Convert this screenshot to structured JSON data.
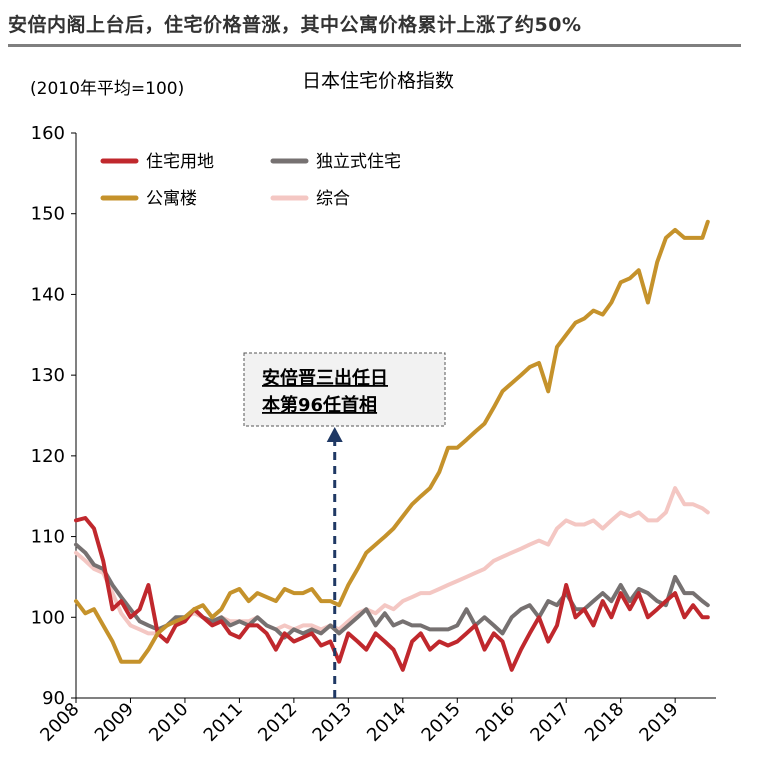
{
  "headline": "安倍内阁上台后，住宅价格普涨，其中公寓价格累计上涨了约50%",
  "chart_data": {
    "type": "line",
    "title": "日本住宅价格指数",
    "unit_label": "(2010年平均=100)",
    "xlabel": "",
    "ylabel": "",
    "ylim": [
      90,
      160
    ],
    "yticks": [
      90,
      100,
      110,
      120,
      130,
      140,
      150,
      160
    ],
    "xlim": [
      2008.0,
      2019.75
    ],
    "xticks": [
      "2008",
      "2009",
      "2010",
      "2011",
      "2012",
      "2013",
      "2014",
      "2015",
      "2016",
      "2017",
      "2018",
      "2019"
    ],
    "grid": false,
    "legend_position": "top-left",
    "annotation": {
      "lines": [
        "安倍晋三出任日",
        "本第96任首相"
      ],
      "x": 2012.75
    },
    "series": [
      {
        "name": "住宅用地",
        "color": "#c0282d",
        "x": [
          2008.0,
          2008.17,
          2008.33,
          2008.5,
          2008.67,
          2008.83,
          2009.0,
          2009.17,
          2009.33,
          2009.5,
          2009.67,
          2009.83,
          2010.0,
          2010.17,
          2010.33,
          2010.5,
          2010.67,
          2010.83,
          2011.0,
          2011.17,
          2011.33,
          2011.5,
          2011.67,
          2011.83,
          2012.0,
          2012.17,
          2012.33,
          2012.5,
          2012.67,
          2012.83,
          2013.0,
          2013.17,
          2013.33,
          2013.5,
          2013.67,
          2013.83,
          2014.0,
          2014.17,
          2014.33,
          2014.5,
          2014.67,
          2014.83,
          2015.0,
          2015.17,
          2015.33,
          2015.5,
          2015.67,
          2015.83,
          2016.0,
          2016.17,
          2016.33,
          2016.5,
          2016.67,
          2016.83,
          2017.0,
          2017.17,
          2017.33,
          2017.5,
          2017.67,
          2017.83,
          2018.0,
          2018.17,
          2018.33,
          2018.5,
          2018.67,
          2018.83,
          2019.0,
          2019.17,
          2019.33,
          2019.5,
          2019.6
        ],
        "values": [
          112.0,
          112.3,
          111.0,
          107.0,
          101.0,
          102.0,
          100.0,
          101.0,
          104.0,
          98.0,
          97.0,
          99.0,
          99.5,
          101.0,
          100.0,
          99.0,
          99.5,
          98.0,
          97.5,
          99.0,
          99.0,
          98.0,
          96.0,
          98.0,
          97.0,
          97.5,
          98.0,
          96.5,
          97.0,
          94.5,
          98.0,
          97.0,
          96.0,
          98.0,
          97.0,
          96.0,
          93.5,
          97.0,
          98.0,
          96.0,
          97.0,
          96.5,
          97.0,
          98.0,
          99.0,
          96.0,
          98.0,
          97.0,
          93.5,
          96.0,
          98.0,
          100.0,
          97.0,
          99.0,
          104.0,
          100.0,
          101.0,
          99.0,
          102.0,
          100.0,
          103.0,
          101.0,
          103.0,
          100.0,
          101.0,
          102.0,
          103.0,
          100.0,
          101.5,
          100.0,
          100.0
        ]
      },
      {
        "name": "独立式住宅",
        "color": "#767171",
        "x": [
          2008.0,
          2008.17,
          2008.33,
          2008.5,
          2008.67,
          2008.83,
          2009.0,
          2009.17,
          2009.33,
          2009.5,
          2009.67,
          2009.83,
          2010.0,
          2010.17,
          2010.33,
          2010.5,
          2010.67,
          2010.83,
          2011.0,
          2011.17,
          2011.33,
          2011.5,
          2011.67,
          2011.83,
          2012.0,
          2012.17,
          2012.33,
          2012.5,
          2012.67,
          2012.83,
          2013.0,
          2013.17,
          2013.33,
          2013.5,
          2013.67,
          2013.83,
          2014.0,
          2014.17,
          2014.33,
          2014.5,
          2014.67,
          2014.83,
          2015.0,
          2015.17,
          2015.33,
          2015.5,
          2015.67,
          2015.83,
          2016.0,
          2016.17,
          2016.33,
          2016.5,
          2016.67,
          2016.83,
          2017.0,
          2017.17,
          2017.33,
          2017.5,
          2017.67,
          2017.83,
          2018.0,
          2018.17,
          2018.33,
          2018.5,
          2018.67,
          2018.83,
          2019.0,
          2019.17,
          2019.33,
          2019.5,
          2019.6
        ],
        "values": [
          109.0,
          108.0,
          106.5,
          106.0,
          104.0,
          102.5,
          101.0,
          99.5,
          99.0,
          98.5,
          99.0,
          100.0,
          100.0,
          101.0,
          100.0,
          99.5,
          100.0,
          99.0,
          99.5,
          99.0,
          100.0,
          99.0,
          98.5,
          97.5,
          98.5,
          98.0,
          98.5,
          98.0,
          99.0,
          98.0,
          99.0,
          100.0,
          101.0,
          99.0,
          100.5,
          99.0,
          99.5,
          99.0,
          99.0,
          98.5,
          98.5,
          98.5,
          99.0,
          101.0,
          99.0,
          100.0,
          99.0,
          98.0,
          100.0,
          101.0,
          101.5,
          100.0,
          102.0,
          101.5,
          103.0,
          101.0,
          101.0,
          102.0,
          103.0,
          102.0,
          104.0,
          102.0,
          103.5,
          103.0,
          102.0,
          101.5,
          105.0,
          103.0,
          103.0,
          102.0,
          101.5
        ]
      },
      {
        "name": "公寓楼",
        "color": "#c5922b",
        "x": [
          2008.0,
          2008.17,
          2008.33,
          2008.5,
          2008.67,
          2008.83,
          2009.0,
          2009.17,
          2009.33,
          2009.5,
          2009.67,
          2009.83,
          2010.0,
          2010.17,
          2010.33,
          2010.5,
          2010.67,
          2010.83,
          2011.0,
          2011.17,
          2011.33,
          2011.5,
          2011.67,
          2011.83,
          2012.0,
          2012.17,
          2012.33,
          2012.5,
          2012.67,
          2012.83,
          2013.0,
          2013.17,
          2013.33,
          2013.5,
          2013.67,
          2013.83,
          2014.0,
          2014.17,
          2014.33,
          2014.5,
          2014.67,
          2014.83,
          2015.0,
          2015.17,
          2015.33,
          2015.5,
          2015.67,
          2015.83,
          2016.0,
          2016.17,
          2016.33,
          2016.5,
          2016.67,
          2016.83,
          2017.0,
          2017.17,
          2017.33,
          2017.5,
          2017.67,
          2017.83,
          2018.0,
          2018.17,
          2018.33,
          2018.5,
          2018.67,
          2018.83,
          2019.0,
          2019.17,
          2019.33,
          2019.5,
          2019.6
        ],
        "values": [
          102.0,
          100.5,
          101.0,
          99.0,
          97.0,
          94.5,
          94.5,
          94.5,
          96.0,
          98.0,
          99.0,
          99.5,
          100.0,
          101.0,
          101.5,
          100.0,
          101.0,
          103.0,
          103.5,
          102.0,
          103.0,
          102.5,
          102.0,
          103.5,
          103.0,
          103.0,
          103.5,
          102.0,
          102.0,
          101.5,
          104.0,
          106.0,
          108.0,
          109.0,
          110.0,
          111.0,
          112.5,
          114.0,
          115.0,
          116.0,
          118.0,
          121.0,
          121.0,
          122.0,
          123.0,
          124.0,
          126.0,
          128.0,
          129.0,
          130.0,
          131.0,
          131.5,
          128.0,
          133.5,
          135.0,
          136.5,
          137.0,
          138.0,
          137.5,
          139.0,
          141.5,
          142.0,
          143.0,
          139.0,
          144.0,
          147.0,
          148.0,
          147.0,
          147.0,
          147.0,
          149.0
        ]
      },
      {
        "name": "综合",
        "color": "#f4c7c3",
        "x": [
          2008.0,
          2008.17,
          2008.33,
          2008.5,
          2008.67,
          2008.83,
          2009.0,
          2009.17,
          2009.33,
          2009.5,
          2009.67,
          2009.83,
          2010.0,
          2010.17,
          2010.33,
          2010.5,
          2010.67,
          2010.83,
          2011.0,
          2011.17,
          2011.33,
          2011.5,
          2011.67,
          2011.83,
          2012.0,
          2012.17,
          2012.33,
          2012.5,
          2012.67,
          2012.83,
          2013.0,
          2013.17,
          2013.33,
          2013.5,
          2013.67,
          2013.83,
          2014.0,
          2014.17,
          2014.33,
          2014.5,
          2014.67,
          2014.83,
          2015.0,
          2015.17,
          2015.33,
          2015.5,
          2015.67,
          2015.83,
          2016.0,
          2016.17,
          2016.33,
          2016.5,
          2016.67,
          2016.83,
          2017.0,
          2017.17,
          2017.33,
          2017.5,
          2017.67,
          2017.83,
          2018.0,
          2018.17,
          2018.33,
          2018.5,
          2018.67,
          2018.83,
          2019.0,
          2019.17,
          2019.33,
          2019.5,
          2019.6
        ],
        "values": [
          108.0,
          107.0,
          106.0,
          105.5,
          103.0,
          100.5,
          99.0,
          98.5,
          98.0,
          98.0,
          99.0,
          99.5,
          100.0,
          100.5,
          100.0,
          99.5,
          100.0,
          99.5,
          99.5,
          99.5,
          100.0,
          99.0,
          98.5,
          99.0,
          98.5,
          99.0,
          99.0,
          98.5,
          99.0,
          98.5,
          99.5,
          100.5,
          101.0,
          100.5,
          101.5,
          101.0,
          102.0,
          102.5,
          103.0,
          103.0,
          103.5,
          104.0,
          104.5,
          105.0,
          105.5,
          106.0,
          107.0,
          107.5,
          108.0,
          108.5,
          109.0,
          109.5,
          109.0,
          111.0,
          112.0,
          111.5,
          111.5,
          112.0,
          111.0,
          112.0,
          113.0,
          112.5,
          113.0,
          112.0,
          112.0,
          113.0,
          116.0,
          114.0,
          114.0,
          113.5,
          113.0
        ]
      }
    ]
  }
}
